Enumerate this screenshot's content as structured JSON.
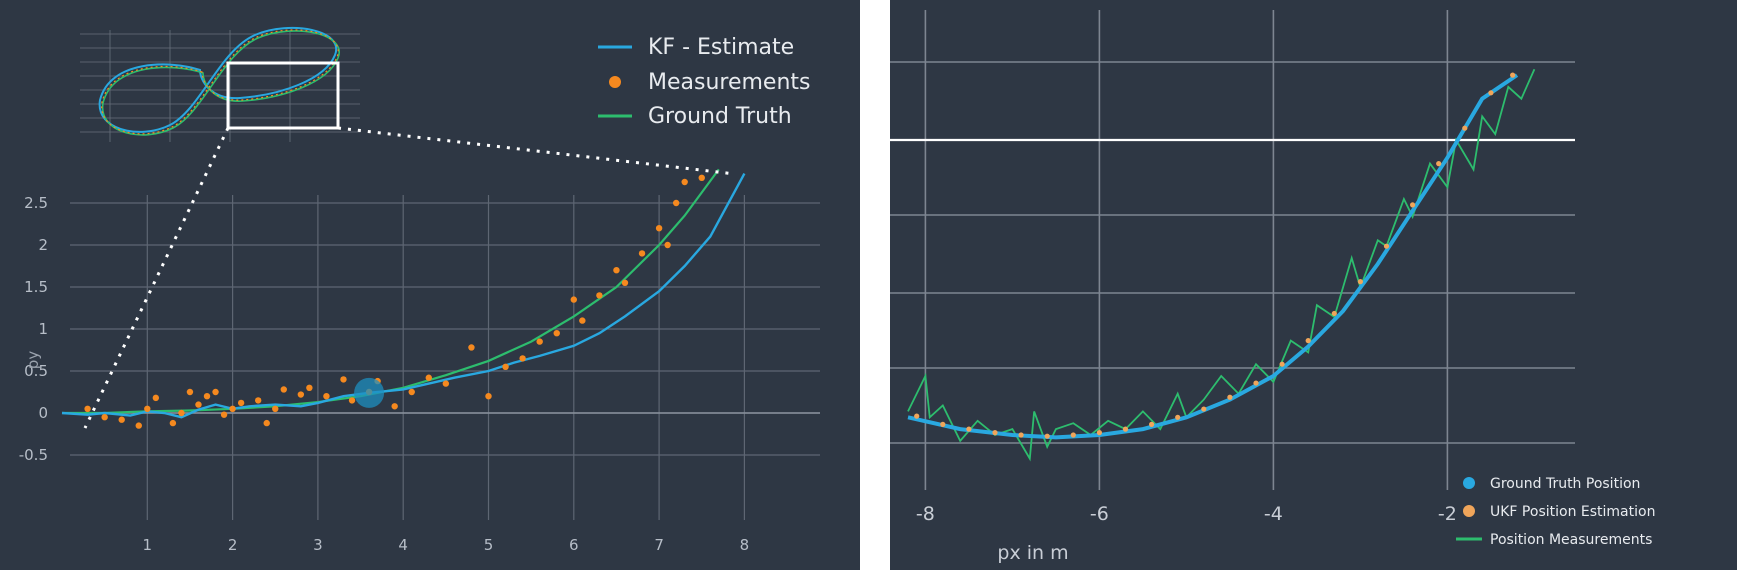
{
  "colors": {
    "background": "#2e3744",
    "grid": "#5e6673",
    "estimate": "#29a8e0",
    "measurement": "#f5891f",
    "truth": "#2dbd6e",
    "inset_box": "#ffffff"
  },
  "chart_data": [
    {
      "type": "line",
      "xlabel": "",
      "ylabel": "py",
      "xlim": [
        0,
        8
      ],
      "ylim": [
        -0.65,
        2.9
      ],
      "x_ticks": [
        "1",
        "2",
        "3",
        "4",
        "5",
        "6",
        "7",
        "8"
      ],
      "y_ticks": [
        "-0.5",
        "0",
        "0.5",
        "1",
        "1.5",
        "2",
        "2.5"
      ],
      "legend": {
        "position": "top-right",
        "entries": [
          "KF - Estimate",
          "Measurements",
          "Ground Truth"
        ]
      },
      "series": [
        {
          "name": "Ground Truth",
          "kind": "line",
          "color": "#2dbd6e",
          "x": [
            0,
            0.5,
            1,
            1.5,
            2,
            2.5,
            3,
            3.5,
            4,
            4.5,
            5,
            5.5,
            6,
            6.5,
            7,
            7.3,
            7.7
          ],
          "y": [
            0,
            0,
            0.02,
            0.03,
            0.05,
            0.08,
            0.13,
            0.2,
            0.3,
            0.45,
            0.62,
            0.85,
            1.15,
            1.5,
            2.0,
            2.35,
            2.9
          ]
        },
        {
          "name": "KF - Estimate",
          "kind": "line",
          "color": "#29a8e0",
          "x": [
            0,
            0.3,
            0.5,
            0.8,
            1.0,
            1.2,
            1.4,
            1.6,
            1.8,
            2.0,
            2.2,
            2.5,
            2.8,
            3.0,
            3.3,
            3.6,
            4.0,
            4.3,
            4.6,
            5.0,
            5.3,
            5.6,
            6.0,
            6.3,
            6.6,
            7.0,
            7.3,
            7.6,
            8.0
          ],
          "y": [
            0,
            -0.02,
            0.0,
            -0.03,
            0.02,
            0.0,
            -0.05,
            0.04,
            0.1,
            0.05,
            0.08,
            0.1,
            0.08,
            0.12,
            0.2,
            0.24,
            0.28,
            0.35,
            0.42,
            0.5,
            0.6,
            0.68,
            0.8,
            0.95,
            1.15,
            1.45,
            1.75,
            2.1,
            2.85
          ]
        },
        {
          "name": "Measurements",
          "kind": "scatter",
          "color": "#f5891f",
          "x": [
            0.3,
            0.5,
            0.7,
            0.9,
            1.0,
            1.1,
            1.3,
            1.4,
            1.5,
            1.6,
            1.7,
            1.8,
            1.9,
            2.0,
            2.1,
            2.3,
            2.4,
            2.5,
            2.6,
            2.8,
            2.9,
            3.1,
            3.3,
            3.4,
            3.6,
            3.7,
            3.9,
            4.1,
            4.3,
            4.5,
            4.8,
            5.0,
            5.2,
            5.4,
            5.6,
            5.8,
            6.0,
            6.1,
            6.3,
            6.5,
            6.6,
            6.8,
            7.0,
            7.1,
            7.2,
            7.3,
            7.5
          ],
          "y": [
            0.05,
            -0.05,
            -0.08,
            -0.15,
            0.05,
            0.18,
            -0.12,
            0.0,
            0.25,
            0.1,
            0.2,
            0.25,
            -0.02,
            0.05,
            0.12,
            0.15,
            -0.12,
            0.05,
            0.28,
            0.22,
            0.3,
            0.2,
            0.4,
            0.15,
            0.25,
            0.38,
            0.08,
            0.25,
            0.42,
            0.35,
            0.78,
            0.2,
            0.55,
            0.65,
            0.85,
            0.95,
            1.35,
            1.1,
            1.4,
            1.7,
            1.55,
            1.9,
            2.2,
            2.0,
            2.5,
            2.75,
            2.8
          ]
        }
      ],
      "marker": {
        "x": 3.6,
        "y": 0.24
      }
    },
    {
      "type": "line",
      "xlabel": "px in m",
      "ylabel": "",
      "xlim": [
        -8.2,
        -0.5
      ],
      "ylim": [
        -0.35,
        3.1
      ],
      "x_ticks": [
        "-8",
        "-6",
        "-4",
        "-2"
      ],
      "legend": {
        "position": "bottom-right",
        "entries": [
          "Ground Truth Position",
          "UKF Position Estimation",
          "Position Measurements"
        ]
      },
      "highlight_line_y": 2.3,
      "series": [
        {
          "name": "Ground Truth Position",
          "kind": "line",
          "color": "#29a8e0",
          "x": [
            -8.2,
            -7.6,
            -7.0,
            -6.5,
            -6.0,
            -5.5,
            -5.0,
            -4.5,
            -4.0,
            -3.6,
            -3.2,
            -2.8,
            -2.4,
            -2.0,
            -1.6,
            -1.2
          ],
          "y": [
            0.15,
            0.05,
            0.0,
            -0.02,
            0.0,
            0.05,
            0.15,
            0.3,
            0.5,
            0.75,
            1.05,
            1.45,
            1.9,
            2.35,
            2.85,
            3.05
          ]
        },
        {
          "name": "UKF Position Estimation",
          "kind": "dots",
          "color": "#f0a55a",
          "x": [
            -8.1,
            -7.8,
            -7.5,
            -7.2,
            -6.9,
            -6.6,
            -6.3,
            -6.0,
            -5.7,
            -5.4,
            -5.1,
            -4.8,
            -4.5,
            -4.2,
            -3.9,
            -3.6,
            -3.3,
            -3.0,
            -2.7,
            -2.4,
            -2.1,
            -1.8,
            -1.5,
            -1.25
          ],
          "y": [
            0.16,
            0.09,
            0.05,
            0.02,
            0.0,
            -0.01,
            0.0,
            0.02,
            0.05,
            0.09,
            0.15,
            0.22,
            0.32,
            0.44,
            0.6,
            0.8,
            1.03,
            1.3,
            1.6,
            1.95,
            2.3,
            2.6,
            2.9,
            3.05
          ]
        },
        {
          "name": "Position Measurements",
          "kind": "line",
          "color": "#2dbd6e",
          "x": [
            -8.2,
            -8.0,
            -7.95,
            -7.8,
            -7.6,
            -7.4,
            -7.2,
            -7.0,
            -6.8,
            -6.75,
            -6.6,
            -6.5,
            -6.3,
            -6.1,
            -5.9,
            -5.7,
            -5.5,
            -5.3,
            -5.1,
            -5.0,
            -4.8,
            -4.6,
            -4.4,
            -4.2,
            -4.0,
            -3.8,
            -3.6,
            -3.5,
            -3.3,
            -3.1,
            -3.0,
            -2.8,
            -2.7,
            -2.5,
            -2.4,
            -2.2,
            -2.0,
            -1.9,
            -1.7,
            -1.6,
            -1.45,
            -1.3,
            -1.15,
            -1.0
          ],
          "y": [
            0.2,
            0.5,
            0.15,
            0.25,
            -0.05,
            0.12,
            0.0,
            0.05,
            -0.2,
            0.2,
            -0.1,
            0.05,
            0.1,
            0.0,
            0.12,
            0.05,
            0.2,
            0.05,
            0.35,
            0.15,
            0.3,
            0.5,
            0.35,
            0.6,
            0.45,
            0.8,
            0.7,
            1.1,
            1.0,
            1.5,
            1.25,
            1.65,
            1.6,
            2.0,
            1.85,
            2.3,
            2.1,
            2.5,
            2.25,
            2.7,
            2.55,
            2.95,
            2.85,
            3.1
          ]
        }
      ]
    }
  ]
}
